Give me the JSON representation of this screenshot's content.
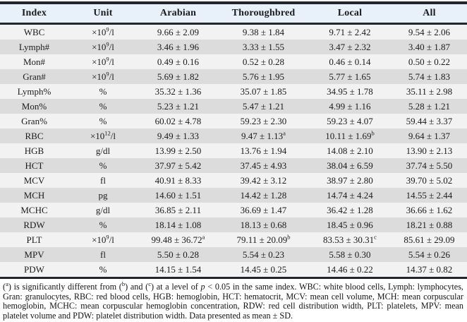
{
  "colors": {
    "header_bg": "#e8f1f9",
    "row_light": "#f2f2f2",
    "row_dark": "#dcdcdc",
    "border": "#23252c",
    "text": "#1b1b1f"
  },
  "table": {
    "columns": [
      "Index",
      "Unit",
      "Arabian",
      "Thoroughbred",
      "Local",
      "All"
    ],
    "rows": [
      {
        "index": "WBC",
        "unit": {
          "pre": "×10",
          "sup": "9",
          "post": "/l"
        },
        "values": [
          {
            "v": "9.66 ± 2.09"
          },
          {
            "v": "9.38 ± 1.84"
          },
          {
            "v": "9.71 ± 2.42"
          },
          {
            "v": "9.54 ± 2.06"
          }
        ]
      },
      {
        "index": "Lymph#",
        "unit": {
          "pre": "×10",
          "sup": "9",
          "post": "/l"
        },
        "values": [
          {
            "v": "3.46 ± 1.96"
          },
          {
            "v": "3.33 ± 1.55"
          },
          {
            "v": "3.47 ± 2.32"
          },
          {
            "v": "3.40 ± 1.87"
          }
        ]
      },
      {
        "index": "Mon#",
        "unit": {
          "pre": "×10",
          "sup": "9",
          "post": "/l"
        },
        "values": [
          {
            "v": "0.49 ± 0.16"
          },
          {
            "v": "0.52 ± 0.28"
          },
          {
            "v": "0.46 ± 0.14"
          },
          {
            "v": "0.50 ± 0.22"
          }
        ]
      },
      {
        "index": "Gran#",
        "unit": {
          "pre": "×10",
          "sup": "9",
          "post": "/l"
        },
        "values": [
          {
            "v": "5.69 ± 1.82"
          },
          {
            "v": "5.76 ± 1.95"
          },
          {
            "v": "5.77 ± 1.65"
          },
          {
            "v": "5.74 ± 1.83"
          }
        ]
      },
      {
        "index": "Lymph%",
        "unit": {
          "pre": "%"
        },
        "values": [
          {
            "v": "35.32 ± 1.36"
          },
          {
            "v": "35.07 ± 1.85"
          },
          {
            "v": "34.95 ± 1.78"
          },
          {
            "v": "35.11 ± 2.98"
          }
        ]
      },
      {
        "index": "Mon%",
        "unit": {
          "pre": "%"
        },
        "values": [
          {
            "v": "5.23 ± 1.21"
          },
          {
            "v": "5.47 ± 1.21"
          },
          {
            "v": "4.99 ± 1.16"
          },
          {
            "v": "5.28 ± 1.21"
          }
        ]
      },
      {
        "index": "Gran%",
        "unit": {
          "pre": "%"
        },
        "values": [
          {
            "v": "60.02 ± 4.78"
          },
          {
            "v": "59.23 ± 2.30"
          },
          {
            "v": "59.23 ± 4.07"
          },
          {
            "v": "59.44 ± 3.37"
          }
        ]
      },
      {
        "index": "RBC",
        "unit": {
          "pre": "×10",
          "sup": "12",
          "post": "/l"
        },
        "values": [
          {
            "v": "9.49 ± 1.33"
          },
          {
            "v": "9.47 ± 1.13",
            "sup": "a"
          },
          {
            "v": "10.11 ± 1.69",
            "sup": "b"
          },
          {
            "v": "9.64 ± 1.37"
          }
        ]
      },
      {
        "index": "HGB",
        "unit": {
          "pre": "g/dl"
        },
        "values": [
          {
            "v": "13.99 ± 2.50"
          },
          {
            "v": "13.76 ± 1.94"
          },
          {
            "v": "14.08 ± 2.10"
          },
          {
            "v": "13.90 ± 2.13"
          }
        ]
      },
      {
        "index": "HCT",
        "unit": {
          "pre": "%"
        },
        "values": [
          {
            "v": "37.97 ± 5.42"
          },
          {
            "v": "37.45 ± 4.93"
          },
          {
            "v": "38.04 ± 6.59"
          },
          {
            "v": "37.74 ± 5.50"
          }
        ]
      },
      {
        "index": "MCV",
        "unit": {
          "pre": "fl"
        },
        "values": [
          {
            "v": "40.91 ± 8.33"
          },
          {
            "v": "39.42 ± 3.12"
          },
          {
            "v": "38.97 ± 2.80"
          },
          {
            "v": "39.70 ± 5.02"
          }
        ]
      },
      {
        "index": "MCH",
        "unit": {
          "pre": "pg"
        },
        "values": [
          {
            "v": "14.60 ± 1.51"
          },
          {
            "v": "14.42 ± 1.28"
          },
          {
            "v": "14.74 ± 4.24"
          },
          {
            "v": "14.55 ± 2.44"
          }
        ]
      },
      {
        "index": "MCHC",
        "unit": {
          "pre": "g/dl"
        },
        "values": [
          {
            "v": "36.85 ± 2.11"
          },
          {
            "v": "36.69 ± 1.47"
          },
          {
            "v": "36.42 ± 1.28"
          },
          {
            "v": "36.66 ± 1.62"
          }
        ]
      },
      {
        "index": "RDW",
        "unit": {
          "pre": "%"
        },
        "values": [
          {
            "v": "18.14 ± 1.08"
          },
          {
            "v": "18.13 ± 0.68"
          },
          {
            "v": "18.45 ± 0.96"
          },
          {
            "v": "18.21 ± 0.88"
          }
        ]
      },
      {
        "index": "PLT",
        "unit": {
          "pre": "×10",
          "sup": "9",
          "post": "/l"
        },
        "values": [
          {
            "v": "99.48 ± 36.72",
            "sup": "a"
          },
          {
            "v": "79.11 ± 20.09",
            "sup": "b"
          },
          {
            "v": "83.53 ± 30.31",
            "sup": "c"
          },
          {
            "v": "85.61 ± 29.09"
          }
        ]
      },
      {
        "index": "MPV",
        "unit": {
          "pre": "fl"
        },
        "values": [
          {
            "v": "5.50 ± 0.28"
          },
          {
            "v": "5.54 ± 0.23"
          },
          {
            "v": "5.58 ± 0.30"
          },
          {
            "v": "5.54 ± 0.26"
          }
        ]
      },
      {
        "index": "PDW",
        "unit": {
          "pre": "%"
        },
        "values": [
          {
            "v": "14.15 ± 1.54"
          },
          {
            "v": "14.45 ± 0.25"
          },
          {
            "v": "14.46 ± 0.22"
          },
          {
            "v": "14.37 ± 0.82"
          }
        ]
      }
    ]
  },
  "footnote": {
    "segments": [
      {
        "t": "("
      },
      {
        "t": "a",
        "style": "sup"
      },
      {
        "t": ") is significantly different from ("
      },
      {
        "t": "b",
        "style": "sup"
      },
      {
        "t": ") and ("
      },
      {
        "t": "c",
        "style": "sup"
      },
      {
        "t": ") at a level of "
      },
      {
        "t": "p",
        "style": "italic"
      },
      {
        "t": " < 0.05 in the same index. WBC: white blood cells, Lymph: lymphocytes, Gran: granulocytes, RBC: red blood cells, HGB: hemoglobin, HCT: hematocrit, MCV: mean cell volume, MCH: mean corpuscular hemoglobin, MCHC: mean corpuscular hemoglobin concentration, RDW: red cell distribution width, PLT: platelets, MPV: mean platelet volume and PDW: platelet distribution width. Data presented as mean ± SD."
      }
    ]
  }
}
